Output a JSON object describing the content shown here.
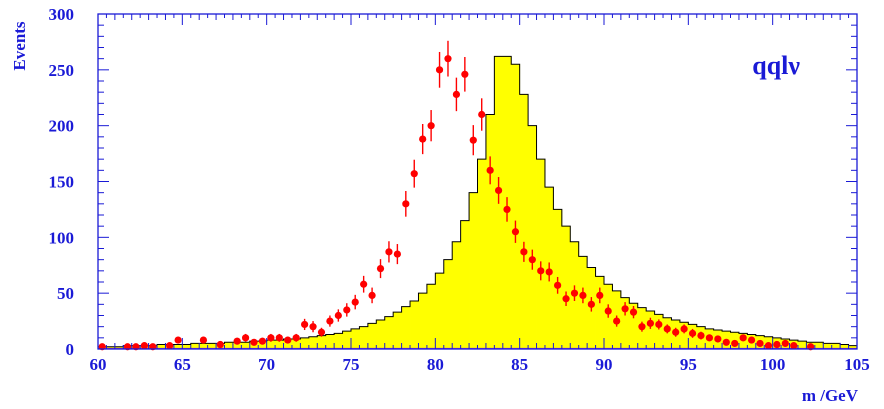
{
  "chart_data": {
    "type": "histogram",
    "title": "",
    "xlabel": "m /GeV",
    "ylabel": "Events",
    "annotation": "qqlν",
    "xlim": [
      60,
      105
    ],
    "ylim": [
      0,
      300
    ],
    "xticks": [
      60,
      65,
      70,
      75,
      80,
      85,
      90,
      95,
      100,
      105
    ],
    "yticks": [
      0,
      50,
      100,
      150,
      200,
      250,
      300
    ],
    "grid": false,
    "legend": "none",
    "bin_width": 0.5,
    "bin_start": 60,
    "colors": {
      "frame": "#1a1ad6",
      "fill": "#ffff00",
      "outline": "#000000",
      "background_fill": "#9933cc",
      "points": "#ff0000"
    },
    "series": [
      {
        "kind": "histogram",
        "values": [
          2,
          2,
          2,
          3,
          3,
          3,
          3,
          4,
          4,
          4,
          4,
          5,
          5,
          5,
          5,
          6,
          6,
          6,
          7,
          7,
          8,
          8,
          9,
          9,
          10,
          11,
          12,
          13,
          14,
          16,
          18,
          20,
          23,
          26,
          29,
          33,
          38,
          43,
          50,
          58,
          68,
          80,
          96,
          115,
          140,
          170,
          210,
          262,
          262,
          255,
          228,
          200,
          170,
          145,
          125,
          110,
          96,
          83,
          73,
          65,
          58,
          52,
          46,
          41,
          37,
          34,
          31,
          28,
          26,
          24,
          22,
          20,
          18,
          17,
          16,
          15,
          14,
          13,
          12,
          11,
          10,
          9,
          8,
          7,
          6,
          6,
          5,
          5,
          4,
          3
        ]
      },
      {
        "kind": "histogram-background",
        "values": [
          1,
          1,
          1,
          1,
          1,
          1,
          1,
          1,
          1,
          1,
          1,
          1,
          1,
          1,
          1,
          1,
          1,
          1,
          1,
          1,
          1,
          1,
          1,
          1,
          1,
          1,
          1,
          1,
          1,
          1,
          1,
          1,
          1,
          1,
          1,
          1,
          1,
          1,
          1,
          1,
          1,
          1,
          1,
          1,
          1,
          1,
          1,
          1,
          1,
          1,
          1,
          1,
          1,
          1,
          1,
          1,
          1,
          1,
          1,
          1,
          1,
          1,
          1,
          1,
          1,
          1,
          1,
          1,
          1,
          1,
          1,
          1,
          1,
          1,
          1,
          1,
          1,
          1,
          1,
          1,
          1,
          1,
          1,
          1,
          1,
          1,
          1,
          1,
          1,
          1
        ]
      },
      {
        "kind": "data-points",
        "x": [
          60.25,
          61.75,
          62.25,
          62.75,
          63.25,
          64.25,
          64.75,
          66.25,
          67.25,
          68.25,
          68.75,
          69.25,
          69.75,
          70.25,
          70.75,
          71.25,
          71.75,
          72.25,
          72.75,
          73.25,
          73.75,
          74.25,
          74.75,
          75.25,
          75.75,
          76.25,
          76.75,
          77.25,
          77.75,
          78.25,
          78.75,
          79.25,
          79.75,
          80.25,
          80.75,
          81.25,
          81.75,
          82.25,
          82.75,
          83.25,
          83.75,
          84.25,
          84.75,
          85.25,
          85.75,
          86.25,
          86.75,
          87.25,
          87.75,
          88.25,
          88.75,
          89.25,
          89.75,
          90.25,
          90.75,
          91.25,
          91.75,
          92.25,
          92.75,
          93.25,
          93.75,
          94.25,
          94.75,
          95.25,
          95.75,
          96.25,
          96.75,
          97.25,
          97.75,
          98.25,
          98.75,
          99.25,
          99.75,
          100.25,
          100.75,
          101.25,
          102.25
        ],
        "y": [
          2,
          2,
          2,
          3,
          2,
          3,
          8,
          8,
          4,
          7,
          10,
          6,
          7,
          10,
          10,
          8,
          10,
          22,
          20,
          15,
          25,
          30,
          35,
          42,
          58,
          48,
          72,
          87,
          85,
          130,
          157,
          188,
          200,
          250,
          260,
          228,
          246,
          187,
          210,
          160,
          142,
          125,
          105,
          87,
          80,
          70,
          69,
          57,
          45,
          50,
          48,
          40,
          48,
          34,
          25,
          36,
          33,
          20,
          23,
          22,
          18,
          15,
          18,
          14,
          12,
          10,
          9,
          6,
          5,
          10,
          8,
          5,
          3,
          4,
          5,
          3,
          2
        ],
        "yerr": [
          1.5,
          1.5,
          1.5,
          2,
          1.5,
          2,
          3,
          3,
          2,
          3,
          3.5,
          2.5,
          3,
          3.5,
          3.5,
          3,
          3.5,
          5,
          5,
          4,
          5,
          5.5,
          6,
          6.5,
          7.5,
          7,
          8.5,
          9.5,
          9,
          11.5,
          12.5,
          13.5,
          14,
          16,
          16,
          15,
          15.5,
          13.5,
          14.5,
          12.5,
          12,
          11,
          10,
          9,
          9,
          8.5,
          8.5,
          7.5,
          6.5,
          7,
          7,
          6.5,
          7,
          6,
          5,
          6,
          5.5,
          4.5,
          5,
          4.5,
          4,
          4,
          4,
          4,
          3.5,
          3,
          3,
          2.5,
          2,
          3,
          3,
          2,
          2,
          2,
          2,
          2,
          1.5
        ]
      }
    ]
  }
}
